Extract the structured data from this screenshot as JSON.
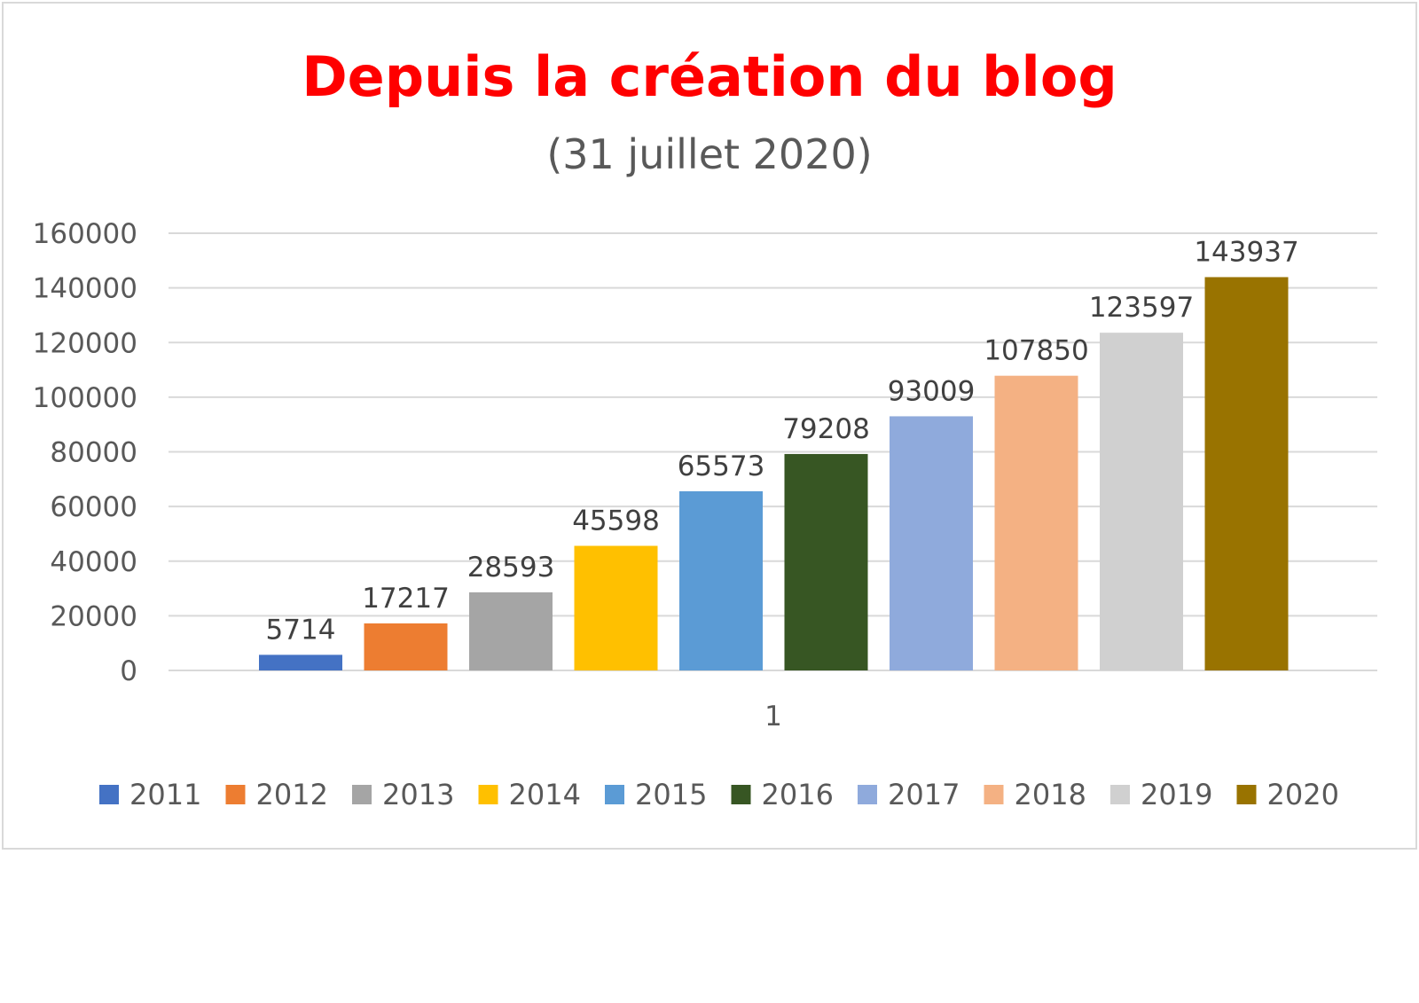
{
  "chart_data": {
    "type": "bar",
    "title": "Depuis la  création du blog",
    "subtitle": "(31 juillet 2020)",
    "categories": [
      "1"
    ],
    "series": [
      {
        "name": "2011",
        "values": [
          5714
        ],
        "color": "#4472c4"
      },
      {
        "name": "2012",
        "values": [
          17217
        ],
        "color": "#ed7d31"
      },
      {
        "name": "2013",
        "values": [
          28593
        ],
        "color": "#a5a5a5"
      },
      {
        "name": "2014",
        "values": [
          45598
        ],
        "color": "#ffc000"
      },
      {
        "name": "2015",
        "values": [
          65573
        ],
        "color": "#5b9bd5"
      },
      {
        "name": "2016",
        "values": [
          79208
        ],
        "color": "#375623"
      },
      {
        "name": "2017",
        "values": [
          93009
        ],
        "color": "#8faadc"
      },
      {
        "name": "2018",
        "values": [
          107850
        ],
        "color": "#f4b183"
      },
      {
        "name": "2019",
        "values": [
          123597
        ],
        "color": "#d0d0d0"
      },
      {
        "name": "2020",
        "values": [
          143937
        ],
        "color": "#997300"
      }
    ],
    "ylim": [
      0,
      160000
    ],
    "yticks": [
      0,
      20000,
      40000,
      60000,
      80000,
      100000,
      120000,
      140000,
      160000
    ],
    "grid": true,
    "legend_position": "bottom",
    "data_labels": true
  }
}
